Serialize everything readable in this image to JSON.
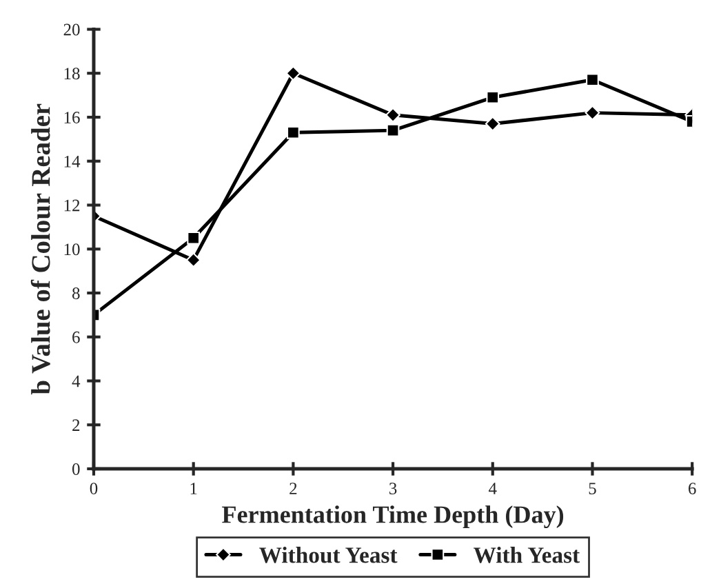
{
  "chart_data": {
    "type": "line",
    "xlabel": "Fermentation Time Depth (Day)",
    "ylabel": "b Value of Colour Reader",
    "x": [
      0,
      1,
      2,
      3,
      4,
      5,
      6
    ],
    "series": [
      {
        "name": "Without Yeast",
        "color": "#000000",
        "marker": "diamond",
        "values": [
          11.5,
          9.5,
          18.0,
          16.1,
          15.7,
          16.2,
          16.1
        ]
      },
      {
        "name": "With Yeast",
        "color": "#000000",
        "marker": "square",
        "values": [
          7.0,
          10.5,
          15.3,
          15.4,
          16.9,
          17.7,
          15.8
        ]
      }
    ],
    "xlim": [
      0,
      6
    ],
    "xticks": [
      0,
      1,
      2,
      3,
      4,
      5,
      6
    ],
    "ylim": [
      0,
      20
    ],
    "yticks": [
      0,
      2,
      4,
      6,
      8,
      10,
      12,
      14,
      16,
      18,
      20
    ],
    "grid": false,
    "legend": "bottom",
    "line_style": "solid"
  }
}
